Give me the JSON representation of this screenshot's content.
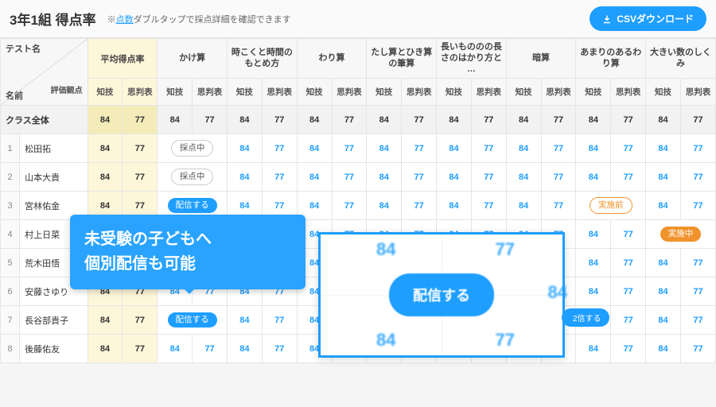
{
  "header": {
    "title": "3年1組 得点率",
    "hint_prefix": "※",
    "hint_link": "点数",
    "hint_rest": "ダブルタップで採点詳細を確認できます",
    "csv_label": "CSVダウンロード"
  },
  "colors": {
    "accent": "#1e9eff",
    "highlight": "#fdf6d9",
    "warn": "#f0932b"
  },
  "corner": {
    "test": "テスト名",
    "hyoka": "評価観点",
    "name": "名前"
  },
  "avg_header": "平均得点率",
  "sub_headers": [
    "知技",
    "思判表"
  ],
  "tests": [
    "かけ算",
    "時こくと時間のもとめ方",
    "わり算",
    "たし算とひき算の筆算",
    "長いもののの長さのはかり方と …",
    "暗算",
    "あまりのあるわり算",
    "大きい数のしくみ"
  ],
  "class_row_label": "クラス全体",
  "students": [
    "松田拓",
    "山本大貴",
    "宮林佑金",
    "村上日菜",
    "荒木田悟",
    "安藤さゆり",
    "長谷部貴子",
    "後藤佑友"
  ],
  "pills": {
    "grading": "採点中",
    "distribute": "配信する",
    "pre": "実施前",
    "progress": "実施中"
  },
  "base_scores": {
    "a": "84",
    "b": "77"
  },
  "callout": {
    "line1": "未受験の子どもへ",
    "line2": "個別配信も可能"
  },
  "zoom": {
    "btn": "配信する",
    "ghost": "84",
    "ghost2": "77",
    "side": "2信する"
  }
}
